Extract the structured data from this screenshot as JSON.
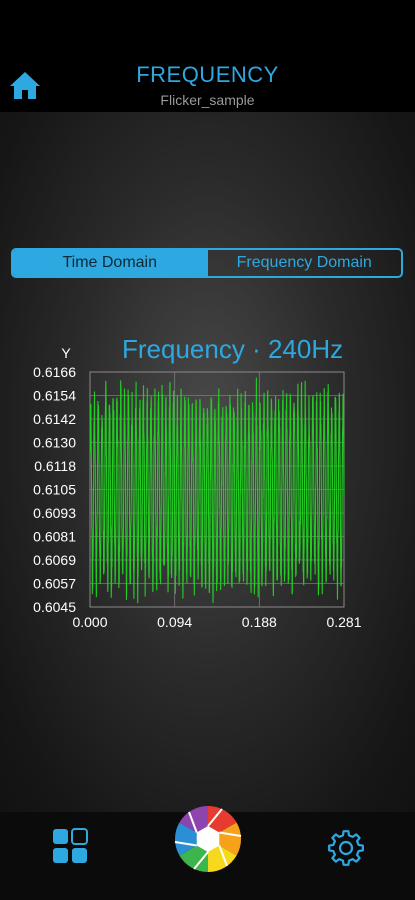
{
  "header": {
    "title": "FREQUENCY",
    "subtitle": "Flicker_sample",
    "home_icon": "home-icon"
  },
  "tabs": [
    {
      "label": "Time Domain",
      "active": true
    },
    {
      "label": "Frequency Domain",
      "active": false
    }
  ],
  "chart_title": "Frequency · 240Hz",
  "colors": {
    "accent": "#2ea8e0",
    "signal": "#22cc22",
    "grid": "#8a8a8a"
  },
  "chart_data": {
    "type": "line",
    "title": "Frequency · 240Hz",
    "ylabel": "Y",
    "xlabel": "",
    "xlim": [
      0.0,
      0.281
    ],
    "ylim": [
      0.6045,
      0.6166
    ],
    "y_ticks": [
      "0.6166",
      "0.6154",
      "0.6142",
      "0.6130",
      "0.6118",
      "0.6105",
      "0.6093",
      "0.6081",
      "0.6069",
      "0.6057",
      "0.6045"
    ],
    "x_ticks": [
      "0.000",
      "0.094",
      "0.188",
      "0.281"
    ],
    "grid": true,
    "series": [
      {
        "frequency_hz": 240,
        "x_start": 0.0,
        "x_end": 0.281,
        "y_center": 0.6105,
        "amplitude": 0.0052,
        "y_peak": 0.6164,
        "y_trough": 0.6047
      }
    ]
  },
  "bottom_bar": {
    "left_icon": "grid-apps-icon",
    "center_icon": "camera-shutter-icon",
    "right_icon": "gear-icon"
  }
}
